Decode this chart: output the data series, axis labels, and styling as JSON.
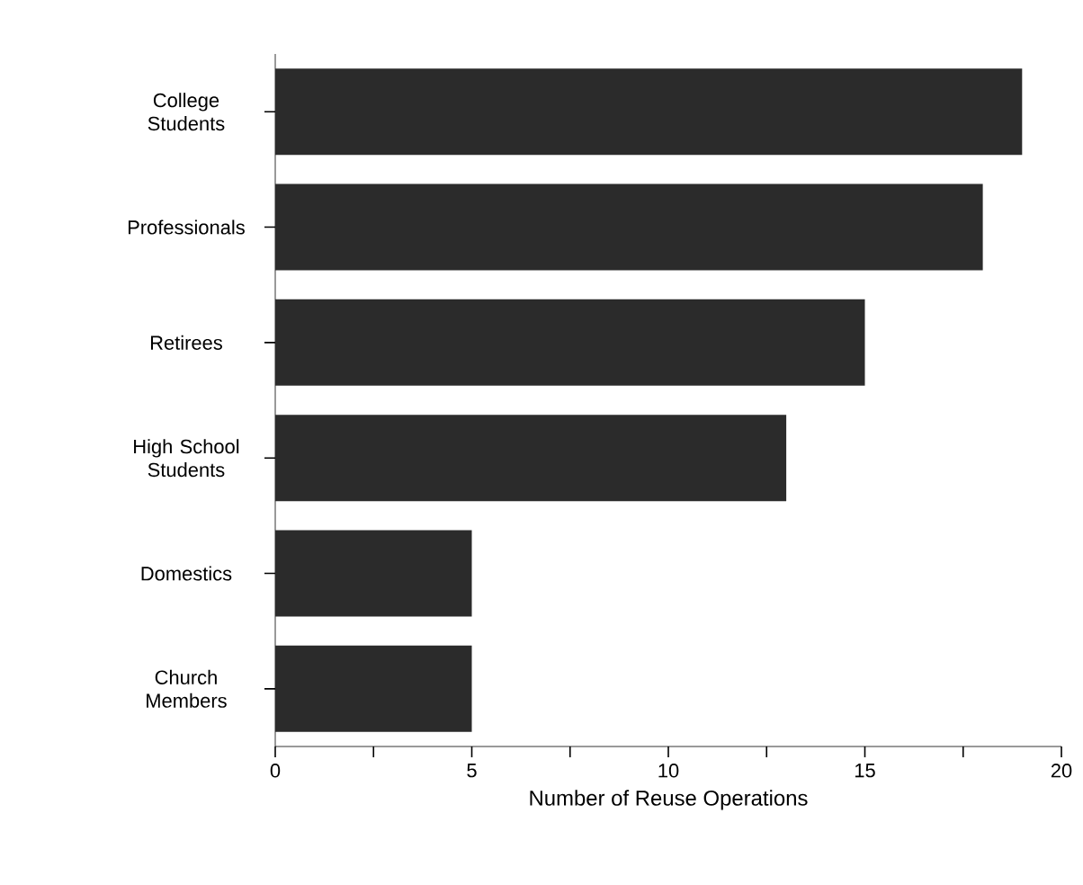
{
  "chart_data": {
    "type": "bar",
    "orientation": "horizontal",
    "xlabel": "Number of Reuse Operations",
    "categories": [
      "College Students",
      "Professionals",
      "Retirees",
      "High School Students",
      "Domestics",
      "Church Members"
    ],
    "values": [
      19,
      18,
      15,
      13,
      5,
      5
    ],
    "color": "#2b2b2b",
    "xlim": [
      0,
      20
    ],
    "xticks": [
      0,
      {
        "value": 2.5,
        "label": null
      },
      5,
      {
        "value": 7.5,
        "label": null
      },
      10,
      {
        "value": 12.5,
        "label": null
      },
      15,
      {
        "value": 17.5,
        "label": null
      },
      20
    ],
    "grid": false
  }
}
